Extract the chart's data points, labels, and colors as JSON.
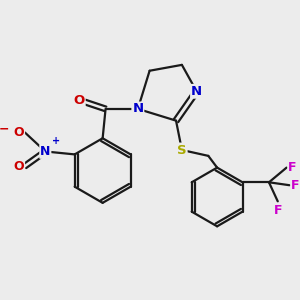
{
  "background_color": "#ececec",
  "bond_color": "#1a1a1a",
  "atom_colors": {
    "N": "#0000cc",
    "O": "#cc0000",
    "S": "#aaaa00",
    "F": "#cc00cc",
    "C": "#1a1a1a"
  },
  "figsize": [
    3.0,
    3.0
  ],
  "dpi": 100,
  "lw": 1.6,
  "sep": 0.018
}
